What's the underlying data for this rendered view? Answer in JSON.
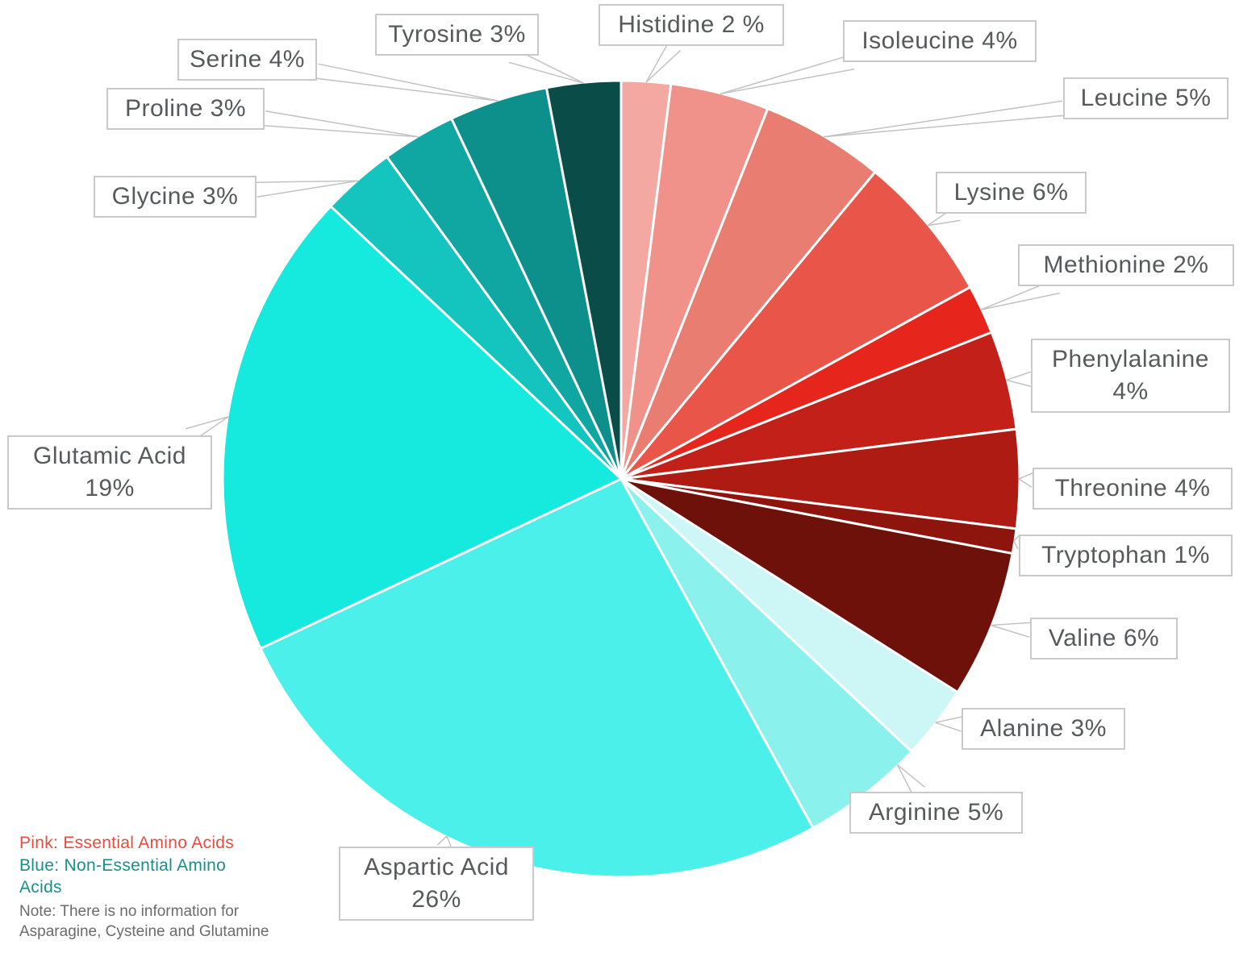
{
  "chart_data": {
    "type": "pie",
    "title": "",
    "unit": "%",
    "start_angle_deg": 0,
    "direction": "clockwise",
    "legend_position": "bottom-left",
    "slices": [
      {
        "label": "Histidine",
        "value": 2,
        "display": "Histidine 2 %",
        "color": "#F4A8A2",
        "group": "essential"
      },
      {
        "label": "Isoleucine",
        "value": 4,
        "display": "Isoleucine 4%",
        "color": "#F0918A",
        "group": "essential"
      },
      {
        "label": "Leucine",
        "value": 5,
        "display": "Leucine 5%",
        "color": "#EA7D71",
        "group": "essential"
      },
      {
        "label": "Lysine",
        "value": 6,
        "display": "Lysine 6%",
        "color": "#E95549",
        "group": "essential"
      },
      {
        "label": "Methionine",
        "value": 2,
        "display": "Methionine 2%",
        "color": "#E6261D",
        "group": "essential"
      },
      {
        "label": "Phenylalanine",
        "value": 4,
        "display": "Phenylalanine\n4%",
        "color": "#C22018",
        "group": "essential"
      },
      {
        "label": "Threonine",
        "value": 4,
        "display": "Threonine 4%",
        "color": "#AE1B12",
        "group": "essential"
      },
      {
        "label": "Tryptophan",
        "value": 1,
        "display": "Tryptophan 1%",
        "color": "#8D150E",
        "group": "essential"
      },
      {
        "label": "Valine",
        "value": 6,
        "display": "Valine 6%",
        "color": "#6E110B",
        "group": "essential"
      },
      {
        "label": "Alanine",
        "value": 3,
        "display": "Alanine 3%",
        "color": "#CDF6F6",
        "group": "non-essential"
      },
      {
        "label": "Arginine",
        "value": 5,
        "display": "Arginine 5%",
        "color": "#8BF1EC",
        "group": "non-essential"
      },
      {
        "label": "Aspartic Acid",
        "value": 26,
        "display": "Aspartic Acid\n26%",
        "color": "#4AF0E9",
        "group": "non-essential"
      },
      {
        "label": "Glutamic Acid",
        "value": 19,
        "display": "Glutamic Acid\n19%",
        "color": "#16EADF",
        "group": "non-essential"
      },
      {
        "label": "Glycine",
        "value": 3,
        "display": "Glycine 3%",
        "color": "#14C4BE",
        "group": "non-essential"
      },
      {
        "label": "Proline",
        "value": 3,
        "display": "Proline 3%",
        "color": "#10A7A2",
        "group": "non-essential"
      },
      {
        "label": "Serine",
        "value": 4,
        "display": "Serine 4%",
        "color": "#0D908B",
        "group": "non-essential"
      },
      {
        "label": "Tyrosine",
        "value": 3,
        "display": "Tyrosine 3%",
        "color": "#0A4C48",
        "group": "non-essential"
      }
    ]
  },
  "legend": {
    "pink_line": "Pink: Essential Amino Acids",
    "pink_color": "#E94B3F",
    "blue_line": "Blue: Non-Essential Amino\nAcids",
    "blue_color": "#17908B",
    "note": "Note: There is no information for\nAsparagine, Cysteine and Glutamine",
    "note_color": "#6B6B6B"
  }
}
